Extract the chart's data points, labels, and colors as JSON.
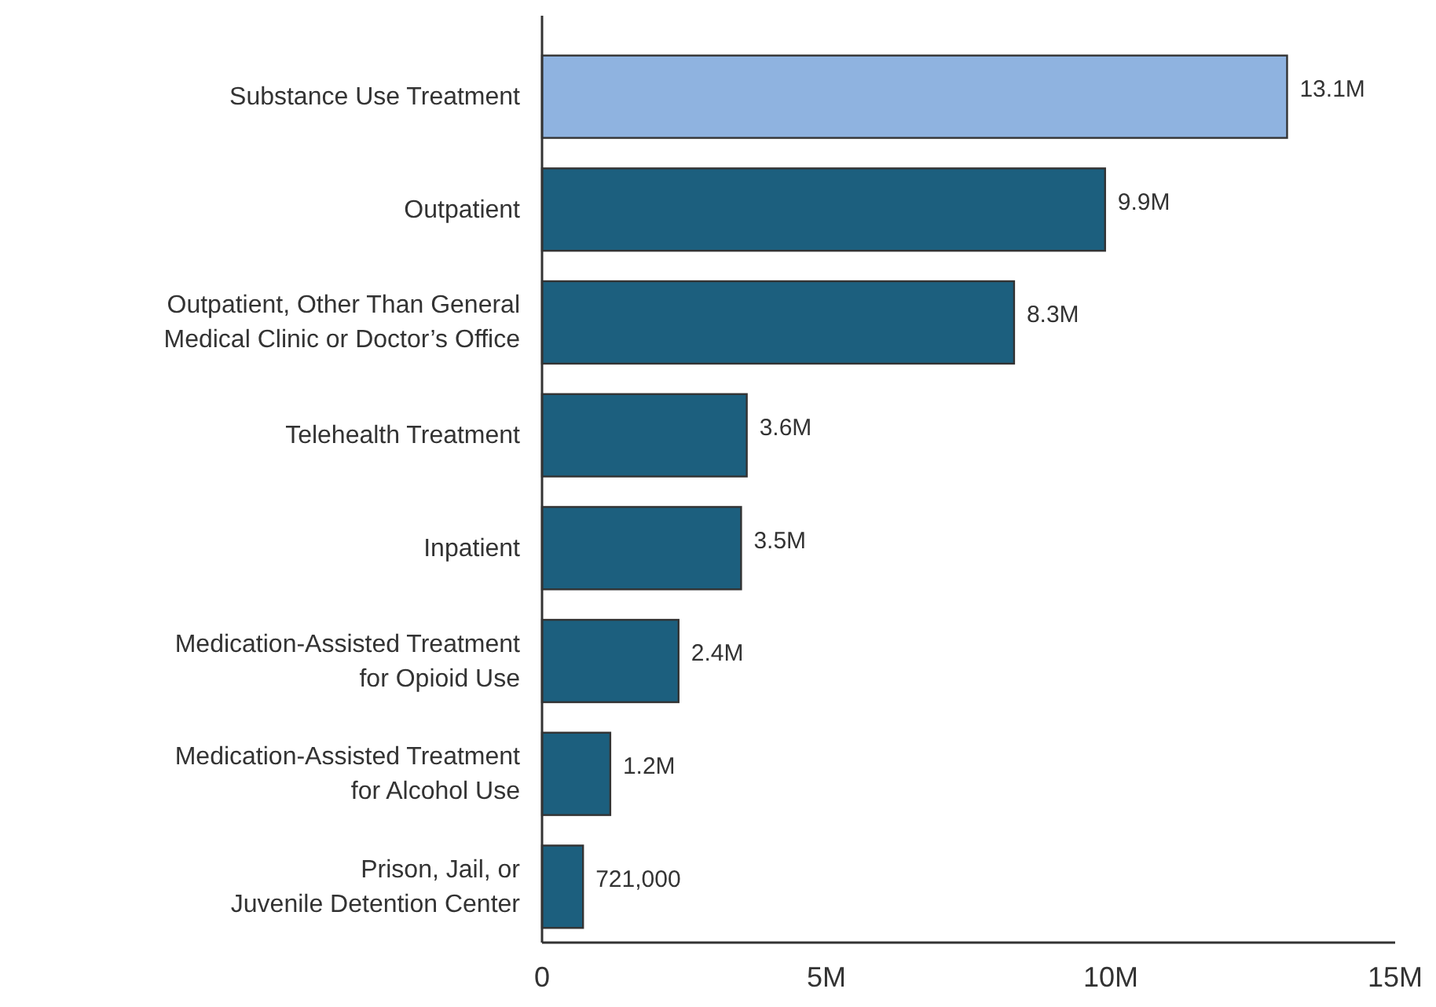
{
  "chart_data": {
    "type": "bar",
    "orientation": "horizontal",
    "categories": [
      "Substance Use Treatment",
      "Outpatient",
      "Outpatient, Other Than General\nMedical Clinic or Doctor’s Office",
      "Telehealth Treatment",
      "Inpatient",
      "Medication-Assisted Treatment\nfor Opioid Use",
      "Medication-Assisted Treatment\nfor Alcohol Use",
      "Prison, Jail, or\nJuvenile Detention Center"
    ],
    "values": [
      13100000,
      9900000,
      8300000,
      3600000,
      3500000,
      2400000,
      1200000,
      721000
    ],
    "colors": [
      "#8fb3e0",
      "#1c5f7e",
      "#1c5f7e",
      "#1c5f7e",
      "#1c5f7e",
      "#1c5f7e",
      "#1c5f7e",
      "#1c5f7e"
    ],
    "value_labels": [
      "13.1M",
      "9.9M",
      "8.3M",
      "3.6M",
      "3.5M",
      "2.4M",
      "1.2M",
      "721,000"
    ],
    "xlim": [
      0,
      15000000
    ],
    "xticks": [
      {
        "value": 0,
        "label": "0"
      },
      {
        "value": 5000000,
        "label": "5M"
      },
      {
        "value": 10000000,
        "label": "10M"
      },
      {
        "value": 15000000,
        "label": "15M"
      }
    ],
    "grid": false
  }
}
